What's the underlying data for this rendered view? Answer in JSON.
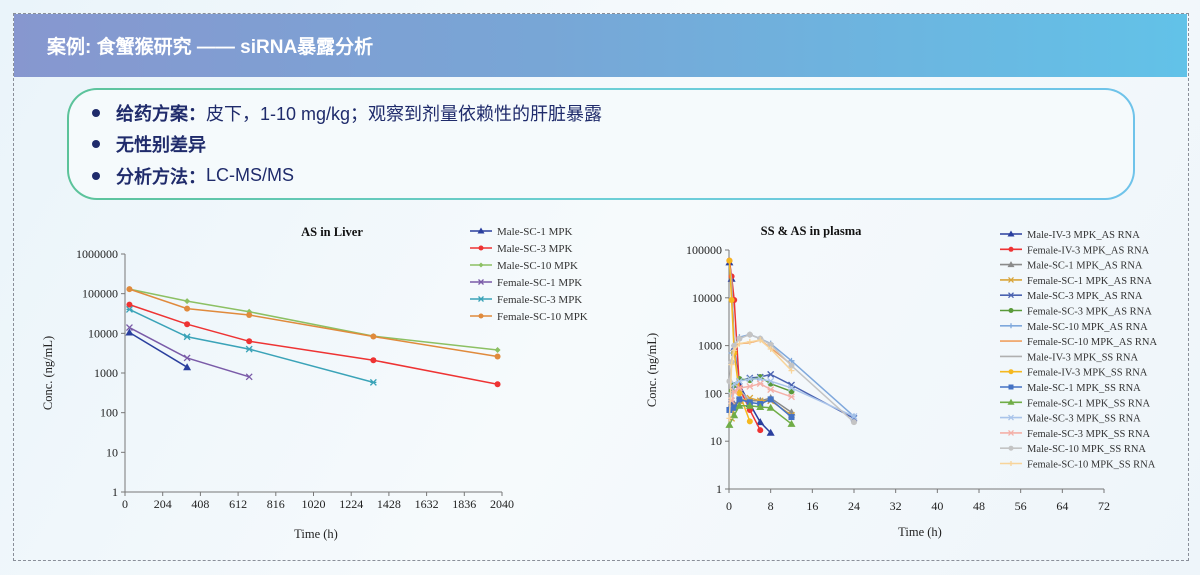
{
  "header": {
    "title": "案例: 食蟹猴研究 —— siRNA暴露分析"
  },
  "bullets": [
    {
      "label": "给药方案：",
      "text": "皮下，1-10 mg/kg；观察到剂量依赖性的肝脏暴露"
    },
    {
      "label": "无性别差异",
      "text": ""
    },
    {
      "label": "分析方法：",
      "text": "LC-MS/MS"
    }
  ],
  "chart_data": [
    {
      "type": "line",
      "title": "AS in Liver",
      "xlabel": "Time (h)",
      "ylabel": "Conc. (ng/mL)",
      "xlim": [
        0,
        2040
      ],
      "xticks": [
        0,
        204,
        408,
        612,
        816,
        1020,
        1224,
        1428,
        1632,
        1836,
        2040
      ],
      "yscale": "log",
      "ylim": [
        1,
        1000000
      ],
      "yticks": [
        "1",
        "10",
        "100",
        "1000",
        "10000",
        "100000",
        "1000000"
      ],
      "legend": "right",
      "series": [
        {
          "name": "Male-SC-1 MPK",
          "color": "#2a3f9e",
          "marker": "triangle",
          "points": [
            [
              24,
              10500
            ],
            [
              336,
              1400
            ]
          ]
        },
        {
          "name": "Male-SC-3 MPK",
          "color": "#ee3333",
          "marker": "circle",
          "points": [
            [
              24,
              53000
            ],
            [
              336,
              17000
            ],
            [
              672,
              6300
            ],
            [
              1344,
              2100
            ],
            [
              2016,
              520
            ]
          ]
        },
        {
          "name": "Male-SC-10 MPK",
          "color": "#8cc063",
          "marker": "diamond",
          "points": [
            [
              24,
              130000
            ],
            [
              336,
              65000
            ],
            [
              672,
              35000
            ],
            [
              1344,
              8500
            ],
            [
              2016,
              3800
            ]
          ]
        },
        {
          "name": "Female-SC-1 MPK",
          "color": "#7a5ba8",
          "marker": "x",
          "points": [
            [
              24,
              14000
            ],
            [
              336,
              2400
            ],
            [
              672,
              800
            ]
          ]
        },
        {
          "name": "Female-SC-3 MPK",
          "color": "#3aa3b8",
          "marker": "star",
          "points": [
            [
              24,
              40000
            ],
            [
              336,
              8200
            ],
            [
              672,
              4000
            ],
            [
              1344,
              580
            ]
          ]
        },
        {
          "name": "Female-SC-10 MPK",
          "color": "#e08a3c",
          "marker": "circle",
          "points": [
            [
              24,
              130000
            ],
            [
              336,
              42000
            ],
            [
              672,
              29000
            ],
            [
              1344,
              8300
            ],
            [
              2016,
              2600
            ]
          ]
        }
      ]
    },
    {
      "type": "line",
      "title": "SS & AS in plasma",
      "xlabel": "Time (h)",
      "ylabel": "Conc. (ng/mL)",
      "xlim": [
        0,
        72
      ],
      "xticks": [
        0,
        8,
        16,
        24,
        32,
        40,
        48,
        56,
        64,
        72
      ],
      "yscale": "log",
      "ylim": [
        1,
        100000
      ],
      "yticks": [
        "1",
        "10",
        "100",
        "1000",
        "10000",
        "100000"
      ],
      "legend": "right",
      "series": [
        {
          "name": "Male-IV-3 MPK_AS RNA",
          "color": "#2a3f9e",
          "marker": "triangle",
          "points": [
            [
              0.08,
              55000
            ],
            [
              0.5,
              25000
            ],
            [
              1,
              900
            ],
            [
              2,
              150
            ],
            [
              4,
              60
            ],
            [
              6,
              25
            ],
            [
              8,
              15
            ]
          ]
        },
        {
          "name": "Female-IV-3 MPK_AS RNA",
          "color": "#ee3333",
          "marker": "circle",
          "points": [
            [
              0.08,
              60000
            ],
            [
              0.5,
              28000
            ],
            [
              1,
              9000
            ],
            [
              2,
              130
            ],
            [
              4,
              45
            ],
            [
              6,
              17
            ]
          ]
        },
        {
          "name": "Male-SC-1 MPK_AS RNA",
          "color": "#8a8a8a",
          "marker": "triangle",
          "points": [
            [
              0.5,
              50
            ],
            [
              1,
              60
            ],
            [
              2,
              70
            ],
            [
              4,
              70
            ],
            [
              6,
              70
            ],
            [
              8,
              80
            ],
            [
              12,
              40
            ]
          ]
        },
        {
          "name": "Female-SC-1 MPK_AS RNA",
          "color": "#d9a53a",
          "marker": "x",
          "points": [
            [
              0.5,
              30
            ],
            [
              1,
              50
            ],
            [
              2,
              70
            ],
            [
              4,
              80
            ],
            [
              6,
              70
            ],
            [
              8,
              70
            ],
            [
              12,
              35
            ]
          ]
        },
        {
          "name": "Male-SC-3 MPK_AS RNA",
          "color": "#4a62b0",
          "marker": "x",
          "points": [
            [
              0.5,
              60
            ],
            [
              1,
              150
            ],
            [
              2,
              180
            ],
            [
              4,
              210
            ],
            [
              6,
              220
            ],
            [
              8,
              250
            ],
            [
              12,
              150
            ],
            [
              24,
              30
            ]
          ]
        },
        {
          "name": "Female-SC-3 MPK_AS RNA",
          "color": "#5a9a3a",
          "marker": "circle",
          "points": [
            [
              0.5,
              110
            ],
            [
              1,
              150
            ],
            [
              2,
              200
            ],
            [
              4,
              190
            ],
            [
              6,
              220
            ],
            [
              8,
              160
            ],
            [
              12,
              110
            ]
          ]
        },
        {
          "name": "Male-SC-10 MPK_AS RNA",
          "color": "#7fa8dc",
          "marker": "plus",
          "points": [
            [
              0.5,
              700
            ],
            [
              1,
              1000
            ],
            [
              2,
              1500
            ],
            [
              4,
              1700
            ],
            [
              6,
              1400
            ],
            [
              8,
              1100
            ],
            [
              12,
              480
            ],
            [
              24,
              33
            ]
          ]
        },
        {
          "name": "Female-SC-10 MPK_AS RNA",
          "color": "#f0a060",
          "marker": "none",
          "points": [
            [
              0.5,
              500
            ],
            [
              1,
              900
            ],
            [
              2,
              1100
            ],
            [
              4,
              1150
            ],
            [
              6,
              1300
            ],
            [
              8,
              900
            ],
            [
              12,
              400
            ]
          ]
        },
        {
          "name": "Male-IV-3 MPK_SS RNA",
          "color": "#b0b0b0",
          "marker": "none",
          "points": [
            [
              0.08,
              50000
            ],
            [
              0.5,
              25000
            ],
            [
              1,
              800
            ],
            [
              2,
              120
            ],
            [
              4,
              70
            ]
          ]
        },
        {
          "name": "Female-IV-3 MPK_SS RNA",
          "color": "#f5b820",
          "marker": "circle",
          "points": [
            [
              0.08,
              60000
            ],
            [
              0.5,
              9000
            ],
            [
              1,
              700
            ],
            [
              2,
              100
            ],
            [
              4,
              26
            ]
          ]
        },
        {
          "name": "Male-SC-1 MPK_SS RNA",
          "color": "#4472c4",
          "marker": "square",
          "points": [
            [
              0.08,
              45
            ],
            [
              1,
              50
            ],
            [
              2,
              75
            ],
            [
              4,
              65
            ],
            [
              6,
              60
            ],
            [
              8,
              75
            ],
            [
              12,
              32
            ]
          ]
        },
        {
          "name": "Female-SC-1 MPK_SS RNA",
          "color": "#70ad47",
          "marker": "triangle",
          "points": [
            [
              0.08,
              22
            ],
            [
              1,
              35
            ],
            [
              2,
              55
            ],
            [
              4,
              55
            ],
            [
              6,
              52
            ],
            [
              8,
              50
            ],
            [
              12,
              23
            ]
          ]
        },
        {
          "name": "Male-SC-3 MPK_SS RNA",
          "color": "#a9c4ea",
          "marker": "x",
          "points": [
            [
              0.5,
              90
            ],
            [
              1,
              160
            ],
            [
              2,
              180
            ],
            [
              4,
              200
            ],
            [
              6,
              200
            ],
            [
              8,
              180
            ],
            [
              12,
              130
            ],
            [
              24,
              33
            ]
          ]
        },
        {
          "name": "Female-SC-3 MPK_SS RNA",
          "color": "#f4b0a8",
          "marker": "star",
          "points": [
            [
              0.5,
              70
            ],
            [
              1,
              110
            ],
            [
              2,
              130
            ],
            [
              4,
              140
            ],
            [
              6,
              160
            ],
            [
              8,
              120
            ],
            [
              12,
              85
            ]
          ]
        },
        {
          "name": "Male-SC-10 MPK_SS RNA",
          "color": "#c4c4c4",
          "marker": "circle",
          "points": [
            [
              0.08,
              180
            ],
            [
              0.5,
              450
            ],
            [
              1,
              1000
            ],
            [
              2,
              1400
            ],
            [
              4,
              1700
            ],
            [
              6,
              1400
            ],
            [
              8,
              1050
            ],
            [
              12,
              380
            ],
            [
              24,
              25
            ]
          ]
        },
        {
          "name": "Female-SC-10 MPK_SS RNA",
          "color": "#f8d49a",
          "marker": "plus",
          "points": [
            [
              0.08,
              30
            ],
            [
              0.5,
              400
            ],
            [
              1,
              800
            ],
            [
              2,
              1100
            ],
            [
              4,
              1200
            ],
            [
              6,
              1300
            ],
            [
              8,
              850
            ],
            [
              12,
              300
            ]
          ]
        }
      ]
    }
  ]
}
